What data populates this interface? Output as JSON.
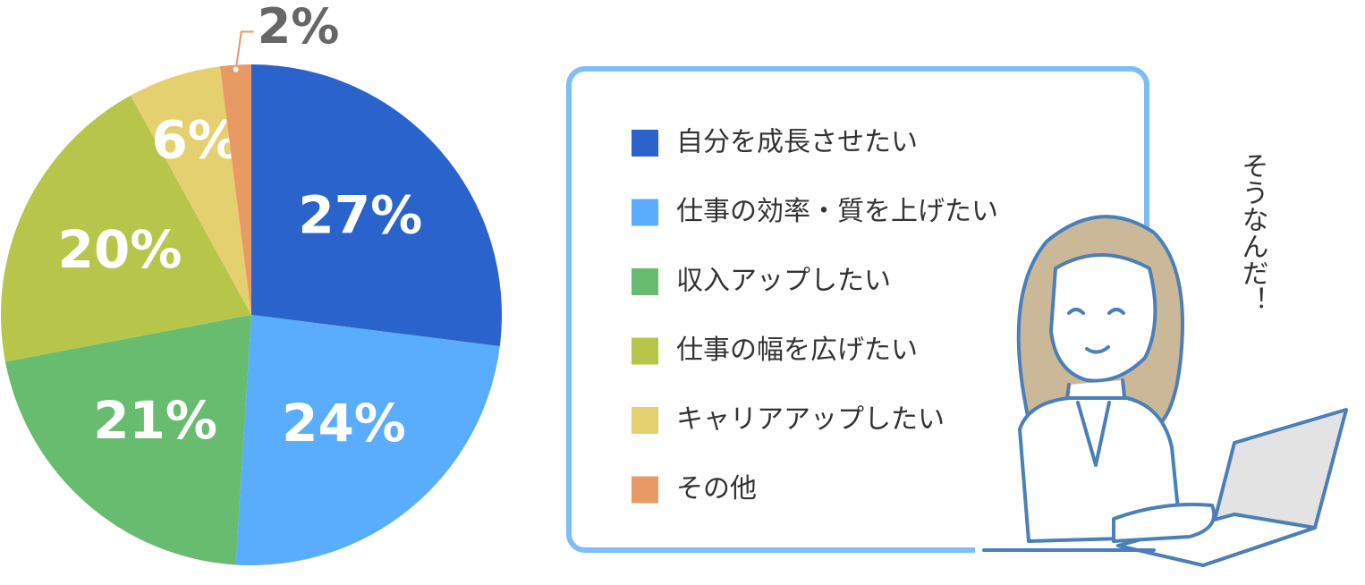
{
  "chart_data": {
    "type": "pie",
    "categories": [
      "自分を成長させたい",
      "仕事の効率・質を上げたい",
      "収入アップしたい",
      "仕事の幅を広げたい",
      "キャリアアップしたい",
      "その他"
    ],
    "values": [
      27,
      24,
      21,
      20,
      6,
      2
    ],
    "value_labels": [
      "27%",
      "24%",
      "21%",
      "20%",
      "6%",
      "2%"
    ],
    "colors": [
      "#2b63cc",
      "#5aacfc",
      "#67bc6f",
      "#b7c64b",
      "#e4d06e",
      "#e89a64"
    ],
    "annotation": "そうなんだ！"
  }
}
